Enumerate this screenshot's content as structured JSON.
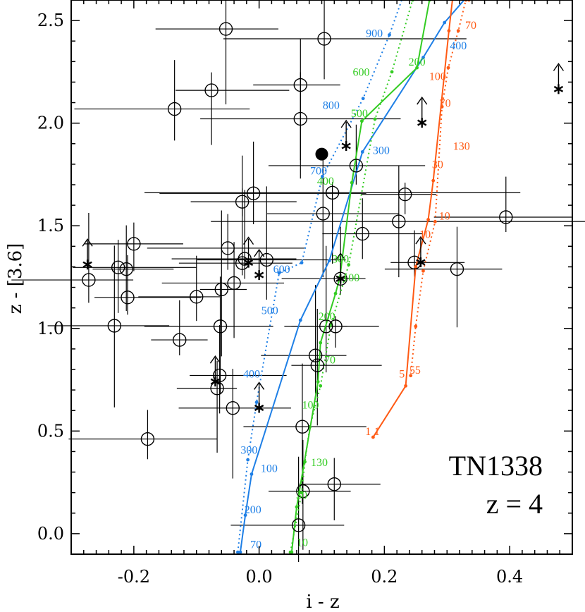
{
  "chart_data": {
    "type": "scatter",
    "title": "",
    "xlabel": "i - z",
    "ylabel": "z - [3.6]",
    "xlim": [
      -0.3,
      0.5
    ],
    "ylim": [
      -0.1,
      2.6
    ],
    "x_ticks": [
      "-0.2",
      "0.0",
      "0.2",
      "0.4"
    ],
    "y_ticks": [
      "0.0",
      "0.5",
      "1.0",
      "1.5",
      "2.0",
      "2.5"
    ],
    "annotation": [
      "TN1338",
      "z = 4"
    ],
    "colors": {
      "blue": "#1e7fe6",
      "green": "#33cc22",
      "orange": "#ff5a14",
      "black": "#000000"
    },
    "open_circles": [
      {
        "x": 0.104,
        "y": 2.411,
        "xerr": [
          0.161,
          0.227
        ]
      },
      {
        "x": -0.135,
        "y": 2.069,
        "xerr": [
          0.16,
          0.12
        ]
      },
      {
        "x": 0.066,
        "y": 2.186
      },
      {
        "x": -0.076,
        "y": 2.16
      },
      {
        "x": -0.053,
        "y": 2.459
      },
      {
        "x": 0.066,
        "y": 2.021,
        "xerr": [
          0.16,
          0.16
        ]
      },
      {
        "x": 0.155,
        "y": 1.793,
        "xerr": [
          0.14,
          0.11
        ]
      },
      {
        "x": 0.117,
        "y": 1.661,
        "xerr": [
          0.3,
          0.3
        ]
      },
      {
        "x": -0.027,
        "y": 1.617
      },
      {
        "x": -0.009,
        "y": 1.658,
        "xerr": [
          0.15,
          0.18
        ]
      },
      {
        "x": 0.102,
        "y": 1.559
      },
      {
        "x": 0.223,
        "y": 1.521,
        "xerr": [
          0.3,
          0.3
        ]
      },
      {
        "x": 0.233,
        "y": 1.653
      },
      {
        "x": 0.394,
        "y": 1.542
      },
      {
        "x": 0.165,
        "y": 1.461
      },
      {
        "x": -0.225,
        "y": 1.297
      },
      {
        "x": -0.212,
        "y": 1.289
      },
      {
        "x": -0.05,
        "y": 1.391
      },
      {
        "x": -0.027,
        "y": 1.318
      },
      {
        "x": -0.023,
        "y": 1.339
      },
      {
        "x": -0.04,
        "y": 1.221
      },
      {
        "x": -0.06,
        "y": 1.19
      },
      {
        "x": -0.1,
        "y": 1.154
      },
      {
        "x": -0.272,
        "y": 1.236
      },
      {
        "x": -0.21,
        "y": 1.151
      },
      {
        "x": -0.231,
        "y": 1.013
      },
      {
        "x": -0.127,
        "y": 0.944
      },
      {
        "x": -0.062,
        "y": 1.01
      },
      {
        "x": -0.063,
        "y": 0.771
      },
      {
        "x": -0.067,
        "y": 0.708
      },
      {
        "x": -0.042,
        "y": 0.612
      },
      {
        "x": 0.107,
        "y": 1.01
      },
      {
        "x": 0.122,
        "y": 1.01
      },
      {
        "x": 0.09,
        "y": 0.868
      },
      {
        "x": 0.093,
        "y": 0.82
      },
      {
        "x": 0.069,
        "y": 0.521
      },
      {
        "x": -0.178,
        "y": 0.461
      },
      {
        "x": 0.07,
        "y": 0.207
      },
      {
        "x": 0.12,
        "y": 0.241
      },
      {
        "x": 0.063,
        "y": 0.041
      },
      {
        "x": 0.316,
        "y": 1.289
      },
      {
        "x": 0.13,
        "y": 1.242
      },
      {
        "x": 0.248,
        "y": 1.321
      },
      {
        "x": -0.2,
        "y": 1.412
      },
      {
        "x": 0.012,
        "y": 1.334
      }
    ],
    "filled_circles": [
      {
        "x": 0.1,
        "y": 1.849
      }
    ],
    "stars": [
      {
        "x": 0.139,
        "y": 1.889
      },
      {
        "x": 0.26,
        "y": 2.002
      },
      {
        "x": 0.478,
        "y": 2.166
      },
      {
        "x": -0.274,
        "y": 1.311
      },
      {
        "x": -0.017,
        "y": 1.32
      },
      {
        "x": 0.0,
        "y": 1.26
      },
      {
        "x": 0.13,
        "y": 1.242
      },
      {
        "x": 0.258,
        "y": 1.322
      },
      {
        "x": -0.07,
        "y": 0.741
      },
      {
        "x": 0.0,
        "y": 0.613
      }
    ],
    "tracks": [
      {
        "name": "blue-solid",
        "color": "blue",
        "dash": false,
        "x": [
          -0.03,
          -0.022,
          -0.012,
          0.066,
          0.112,
          0.165,
          0.262,
          0.296,
          0.35
        ],
        "y": [
          -0.09,
          0.09,
          0.29,
          1.04,
          1.33,
          1.86,
          2.32,
          2.49,
          2.68
        ]
      },
      {
        "name": "blue-dotted",
        "color": "blue",
        "dash": true,
        "x": [
          -0.034,
          -0.018,
          -0.004,
          0.032,
          0.068,
          0.101,
          0.166,
          0.208,
          0.23
        ],
        "y": [
          -0.09,
          0.36,
          0.64,
          1.27,
          1.32,
          1.74,
          2.12,
          2.43,
          2.62
        ]
      },
      {
        "name": "green-solid",
        "color": "green",
        "dash": false,
        "x": [
          0.052,
          0.06,
          0.094,
          0.098,
          0.122,
          0.129,
          0.148,
          0.164,
          0.252,
          0.272
        ],
        "y": [
          -0.09,
          0.13,
          0.74,
          0.93,
          1.17,
          1.25,
          1.71,
          2.01,
          2.27,
          2.6
        ]
      },
      {
        "name": "green-dotted",
        "color": "green",
        "dash": true,
        "x": [
          0.05,
          0.068,
          0.073,
          0.081,
          0.098,
          0.115,
          0.143,
          0.185,
          0.212,
          0.245
        ],
        "y": [
          -0.09,
          0.2,
          0.35,
          0.52,
          0.72,
          1.02,
          1.31,
          2.02,
          2.25,
          2.6
        ]
      },
      {
        "name": "orange-solid",
        "color": "orange",
        "dash": false,
        "x": [
          0.182,
          0.234,
          0.25,
          0.27,
          0.278,
          0.303,
          0.309,
          0.335
        ],
        "y": [
          0.47,
          0.72,
          1.3,
          1.53,
          1.72,
          2.45,
          2.61,
          2.6
        ]
      },
      {
        "name": "orange-dotted",
        "color": "orange",
        "dash": true,
        "x": [
          0.242,
          0.25,
          0.262,
          0.281,
          0.292,
          0.302,
          0.318,
          0.33
        ],
        "y": [
          0.77,
          1.01,
          1.28,
          1.52,
          2.08,
          2.27,
          2.45,
          2.6
        ]
      }
    ],
    "track_labels": [
      {
        "text": "900",
        "x": 0.184,
        "y": 2.42,
        "color": "blue"
      },
      {
        "text": "400",
        "x": 0.318,
        "y": 2.36,
        "color": "blue"
      },
      {
        "text": "800",
        "x": 0.115,
        "y": 2.07,
        "color": "blue"
      },
      {
        "text": "300",
        "x": 0.195,
        "y": 1.85,
        "color": "blue"
      },
      {
        "text": "700",
        "x": 0.095,
        "y": 1.75,
        "color": "blue"
      },
      {
        "text": "600",
        "x": 0.036,
        "y": 1.27,
        "color": "blue"
      },
      {
        "text": "500",
        "x": 0.017,
        "y": 1.07,
        "color": "blue"
      },
      {
        "text": "400",
        "x": -0.012,
        "y": 0.76,
        "color": "blue"
      },
      {
        "text": "300",
        "x": -0.016,
        "y": 0.39,
        "color": "blue"
      },
      {
        "text": "100",
        "x": 0.016,
        "y": 0.3,
        "color": "blue"
      },
      {
        "text": "200",
        "x": -0.01,
        "y": 0.1,
        "color": "blue"
      },
      {
        "text": "70",
        "x": -0.005,
        "y": -0.07,
        "color": "blue"
      },
      {
        "text": "600",
        "x": 0.163,
        "y": 2.23,
        "color": "green"
      },
      {
        "text": "200",
        "x": 0.252,
        "y": 2.28,
        "color": "green"
      },
      {
        "text": "500",
        "x": 0.16,
        "y": 2.03,
        "color": "green"
      },
      {
        "text": "400",
        "x": 0.106,
        "y": 1.7,
        "color": "green"
      },
      {
        "text": "300",
        "x": 0.13,
        "y": 1.32,
        "color": "green"
      },
      {
        "text": "100",
        "x": 0.147,
        "y": 1.23,
        "color": "green"
      },
      {
        "text": "200",
        "x": 0.108,
        "y": 1.04,
        "color": "green"
      },
      {
        "text": "70",
        "x": 0.113,
        "y": 0.83,
        "color": "green"
      },
      {
        "text": "100",
        "x": 0.082,
        "y": 0.61,
        "color": "green"
      },
      {
        "text": "130",
        "x": 0.096,
        "y": 0.33,
        "color": "green"
      },
      {
        "text": "30",
        "x": 0.068,
        "y": 0.17,
        "color": "green"
      },
      {
        "text": "10",
        "x": 0.069,
        "y": -0.06,
        "color": "green"
      },
      {
        "text": "70",
        "x": 0.338,
        "y": 2.46,
        "color": "orange"
      },
      {
        "text": "100",
        "x": 0.285,
        "y": 2.21,
        "color": "orange"
      },
      {
        "text": "70",
        "x": 0.297,
        "y": 2.08,
        "color": "orange"
      },
      {
        "text": "130",
        "x": 0.323,
        "y": 1.87,
        "color": "orange"
      },
      {
        "text": "30",
        "x": 0.285,
        "y": 1.78,
        "color": "orange"
      },
      {
        "text": "10",
        "x": 0.296,
        "y": 1.53,
        "color": "orange"
      },
      {
        "text": "10",
        "x": 0.265,
        "y": 1.44,
        "color": "orange"
      },
      {
        "text": "55",
        "x": 0.249,
        "y": 0.78,
        "color": "orange"
      },
      {
        "text": "5",
        "x": 0.228,
        "y": 0.76,
        "color": "orange"
      },
      {
        "text": "1",
        "x": 0.174,
        "y": 0.48,
        "color": "orange"
      },
      {
        "text": "1",
        "x": 0.188,
        "y": 0.48,
        "color": "orange"
      }
    ]
  }
}
